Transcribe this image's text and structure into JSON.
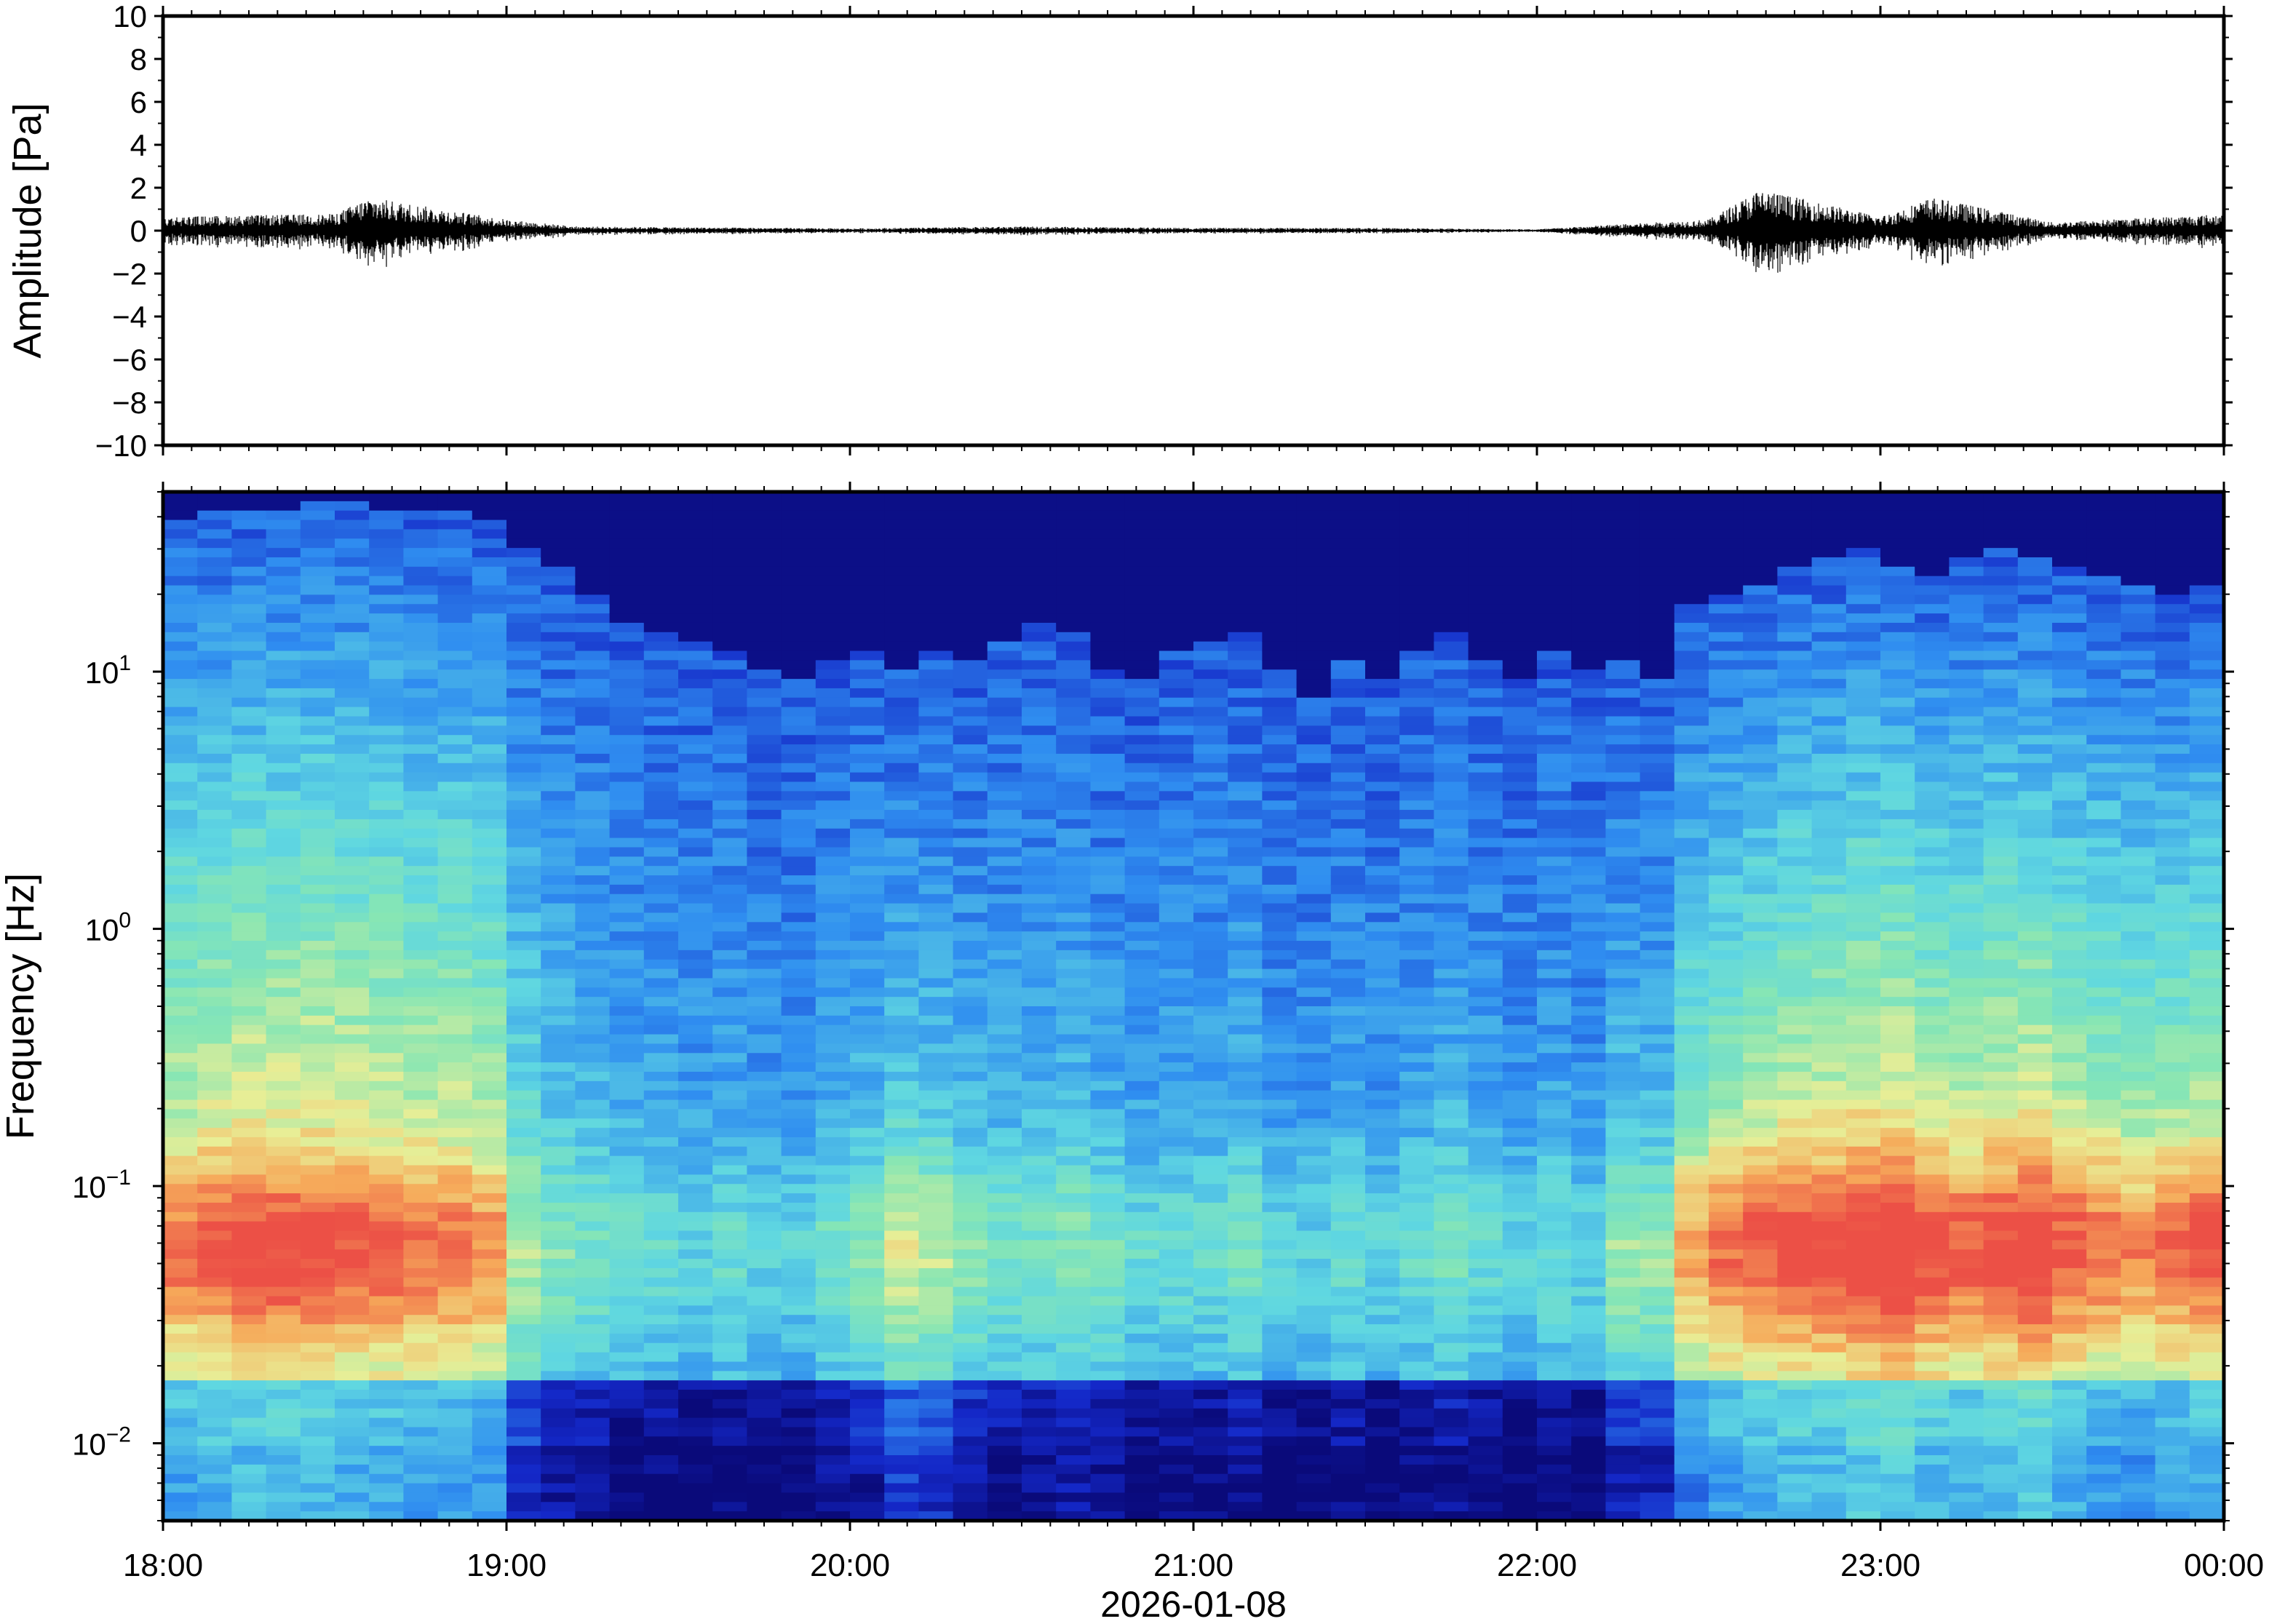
{
  "chart_data": [
    {
      "type": "line",
      "ylabel": "Amplitude [Pa]",
      "ylim": [
        -10,
        10
      ],
      "y_ticks": [
        "10",
        "8",
        "6",
        "4",
        "2",
        "0",
        "−2",
        "−4",
        "−6",
        "−8",
        "−10"
      ],
      "y_tick_values": [
        10,
        8,
        6,
        4,
        2,
        0,
        -2,
        -4,
        -6,
        -8,
        -10
      ],
      "series": [
        {
          "x_hours": [
            0,
            0.5,
            0.6,
            1.0,
            1.2,
            2.0,
            2.5,
            3.0,
            3.5,
            4.0,
            4.2,
            4.5,
            4.65,
            5.0,
            5.15,
            5.5,
            6.0
          ],
          "envelope_pa": [
            0.5,
            0.6,
            1.2,
            0.4,
            0.15,
            0.08,
            0.15,
            0.1,
            0.1,
            0.05,
            0.2,
            0.4,
            1.5,
            0.5,
            1.2,
            0.3,
            0.6
          ],
          "color": "#000000"
        }
      ]
    },
    {
      "type": "heatmap",
      "ylabel": "Frequency [Hz]",
      "y_scale": "log",
      "ylim": [
        0.005,
        50
      ],
      "y_ticks": [
        {
          "base": "10",
          "exp": "1",
          "value": 10
        },
        {
          "base": "10",
          "exp": "0",
          "value": 1
        },
        {
          "base": "10",
          "exp": "−1",
          "value": 0.1
        },
        {
          "base": "10",
          "exp": "−2",
          "value": 0.01
        }
      ],
      "x_ticks": [
        "18:00",
        "19:00",
        "20:00",
        "21:00",
        "22:00",
        "23:00",
        "00:00"
      ],
      "xlabel": "2026-01-08",
      "colormap": "jet",
      "colors": {
        "low": "#0a0a7a",
        "mid_low": "#2f8df0",
        "mid": "#7fe0c0",
        "mid_high": "#f2e88a",
        "high": "#ef5a4c"
      },
      "high_freq_edge_hz_by_column": [
        40,
        42,
        43,
        44,
        45,
        45,
        44,
        43,
        42,
        40,
        30,
        25,
        20,
        16,
        14,
        13,
        12,
        10,
        9,
        11,
        12,
        10,
        12,
        11,
        13,
        15,
        14,
        10,
        9,
        12,
        13,
        14,
        10,
        8,
        11,
        9,
        12,
        14,
        11,
        9,
        12,
        10,
        11,
        9,
        18,
        20,
        22,
        25,
        28,
        30,
        26,
        24,
        28,
        30,
        27,
        25,
        24,
        22,
        20,
        21
      ],
      "low_band_activity_by_column": [
        0.9,
        0.95,
        1.0,
        1.0,
        1.0,
        0.95,
        0.95,
        0.9,
        0.9,
        0.85,
        0.55,
        0.45,
        0.4,
        0.35,
        0.35,
        0.3,
        0.35,
        0.3,
        0.3,
        0.4,
        0.45,
        0.6,
        0.55,
        0.45,
        0.4,
        0.4,
        0.45,
        0.4,
        0.35,
        0.35,
        0.35,
        0.4,
        0.3,
        0.3,
        0.35,
        0.3,
        0.35,
        0.4,
        0.35,
        0.3,
        0.35,
        0.3,
        0.5,
        0.5,
        0.8,
        0.9,
        0.95,
        1.0,
        1.0,
        1.05,
        1.1,
        1.0,
        0.95,
        1.0,
        1.05,
        0.95,
        0.9,
        0.85,
        0.9,
        0.95
      ]
    }
  ]
}
